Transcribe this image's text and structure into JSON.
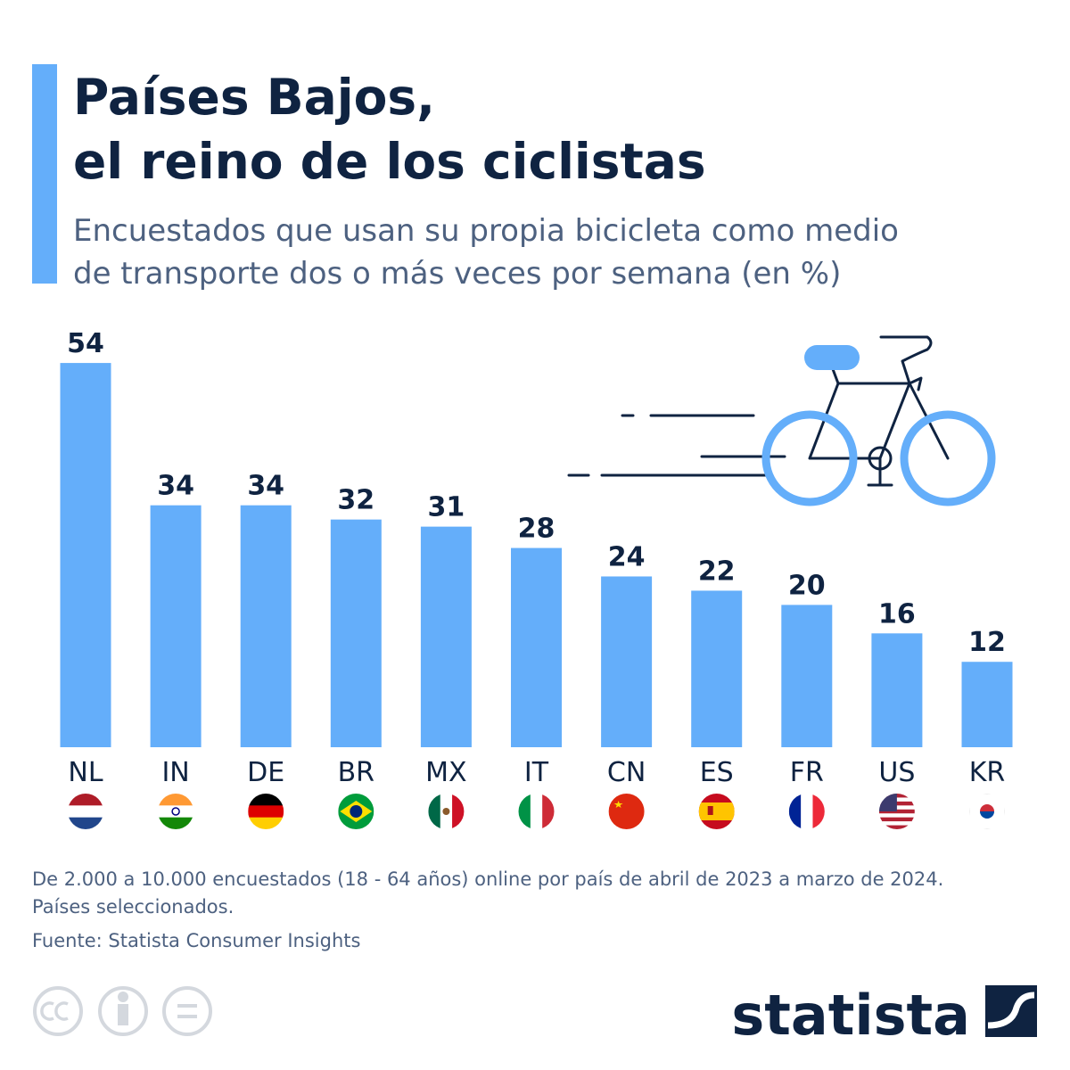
{
  "chart_data": {
    "type": "bar",
    "title": [
      "Países Bajos,",
      "el reino de los ciclistas"
    ],
    "subtitle": [
      "Encuestados que usan su propia bicicleta como medio",
      "de transporte dos o más veces por semana (en %)"
    ],
    "categories": [
      "NL",
      "IN",
      "DE",
      "BR",
      "MX",
      "IT",
      "CN",
      "ES",
      "FR",
      "US",
      "KR"
    ],
    "values": [
      54,
      34,
      34,
      32,
      31,
      28,
      24,
      22,
      20,
      16,
      12
    ],
    "color": "#64aefa",
    "notes": [
      "De 2.000 a 10.000 encuestados (18 - 64 años) online por país de abril de 2023 a marzo de 2024.",
      "Países seleccionados."
    ],
    "source": "Fuente: Statista Consumer Insights",
    "brand": "statista"
  }
}
